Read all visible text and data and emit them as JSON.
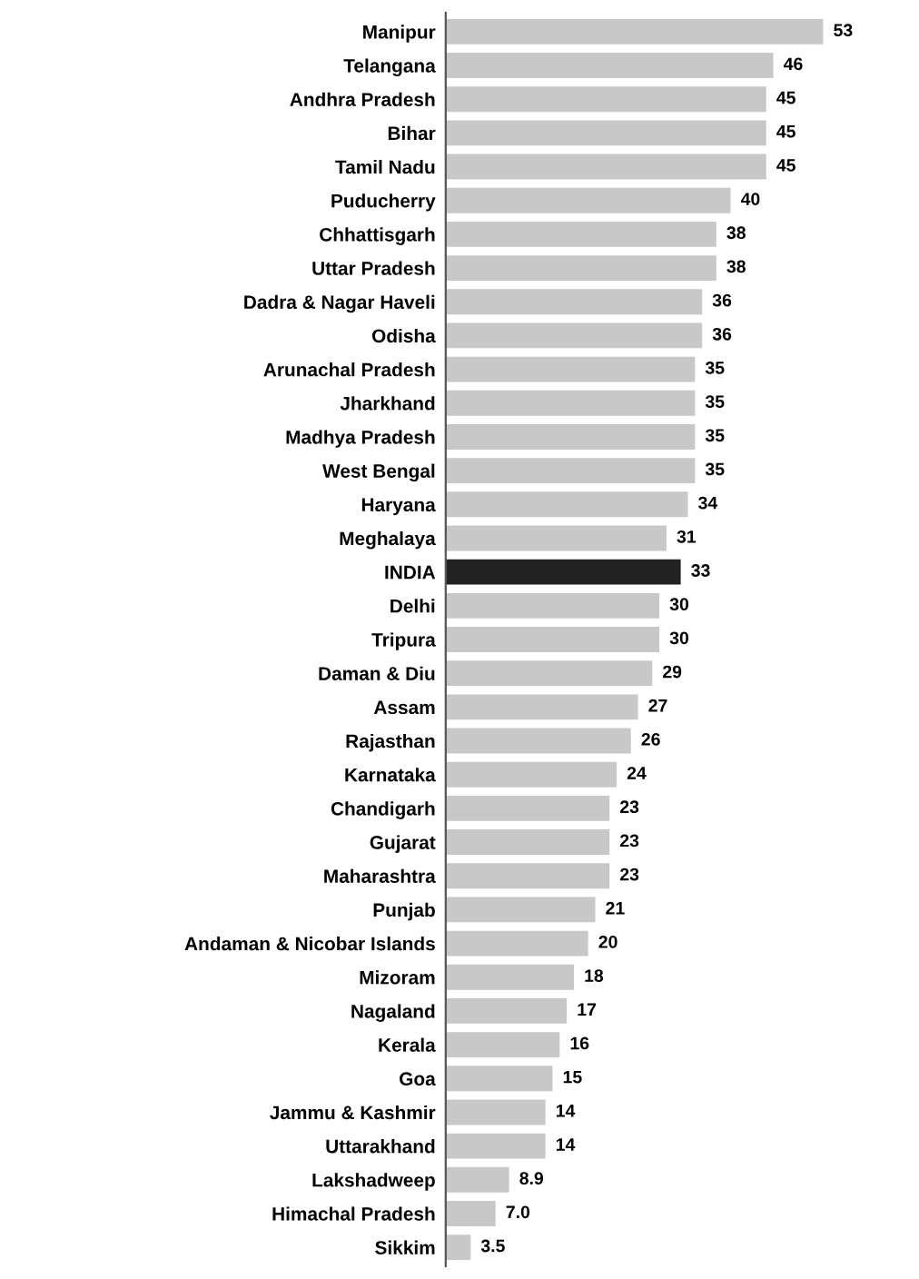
{
  "chart_data": {
    "type": "bar",
    "orientation": "horizontal",
    "categories": [
      "Manipur",
      "Telangana",
      "Andhra Pradesh",
      "Bihar",
      "Tamil Nadu",
      "Puducherry",
      "Chhattisgarh",
      "Uttar Pradesh",
      "Dadra & Nagar Haveli",
      "Odisha",
      "Arunachal Pradesh",
      "Jharkhand",
      "Madhya Pradesh",
      "West Bengal",
      "Haryana",
      "Meghalaya",
      "INDIA",
      "Delhi",
      "Tripura",
      "Daman & Diu",
      "Assam",
      "Rajasthan",
      "Karnataka",
      "Chandigarh",
      "Gujarat",
      "Maharashtra",
      "Punjab",
      "Andaman & Nicobar Islands",
      "Mizoram",
      "Nagaland",
      "Kerala",
      "Goa",
      "Jammu & Kashmir",
      "Uttarakhand",
      "Lakshadweep",
      "Himachal Pradesh",
      "Sikkim"
    ],
    "values": [
      53,
      46,
      45,
      45,
      45,
      40,
      38,
      38,
      36,
      36,
      35,
      35,
      35,
      35,
      34,
      31,
      33,
      30,
      30,
      29,
      27,
      26,
      24,
      23,
      23,
      23,
      21,
      20,
      18,
      17,
      16,
      15,
      14,
      14,
      8.9,
      7.0,
      3.5
    ],
    "value_labels": [
      "53",
      "46",
      "45",
      "45",
      "45",
      "40",
      "38",
      "38",
      "36",
      "36",
      "35",
      "35",
      "35",
      "35",
      "34",
      "31",
      "33",
      "30",
      "30",
      "29",
      "27",
      "26",
      "24",
      "23",
      "23",
      "23",
      "21",
      "20",
      "18",
      "17",
      "16",
      "15",
      "14",
      "14",
      "8.9",
      "7.0",
      "3.5"
    ],
    "colors": [
      "#c8c8c8",
      "#c8c8c8",
      "#c8c8c8",
      "#c8c8c8",
      "#c8c8c8",
      "#c8c8c8",
      "#c8c8c8",
      "#c8c8c8",
      "#c8c8c8",
      "#c8c8c8",
      "#c8c8c8",
      "#c8c8c8",
      "#c8c8c8",
      "#c8c8c8",
      "#c8c8c8",
      "#c8c8c8",
      "#222222",
      "#c8c8c8",
      "#c8c8c8",
      "#c8c8c8",
      "#c8c8c8",
      "#c8c8c8",
      "#c8c8c8",
      "#c8c8c8",
      "#c8c8c8",
      "#c8c8c8",
      "#c8c8c8",
      "#c8c8c8",
      "#c8c8c8",
      "#c8c8c8",
      "#c8c8c8",
      "#c8c8c8",
      "#c8c8c8",
      "#c8c8c8",
      "#c8c8c8",
      "#c8c8c8",
      "#c8c8c8"
    ],
    "tick_labels": "y",
    "grid": false,
    "legend": false
  }
}
